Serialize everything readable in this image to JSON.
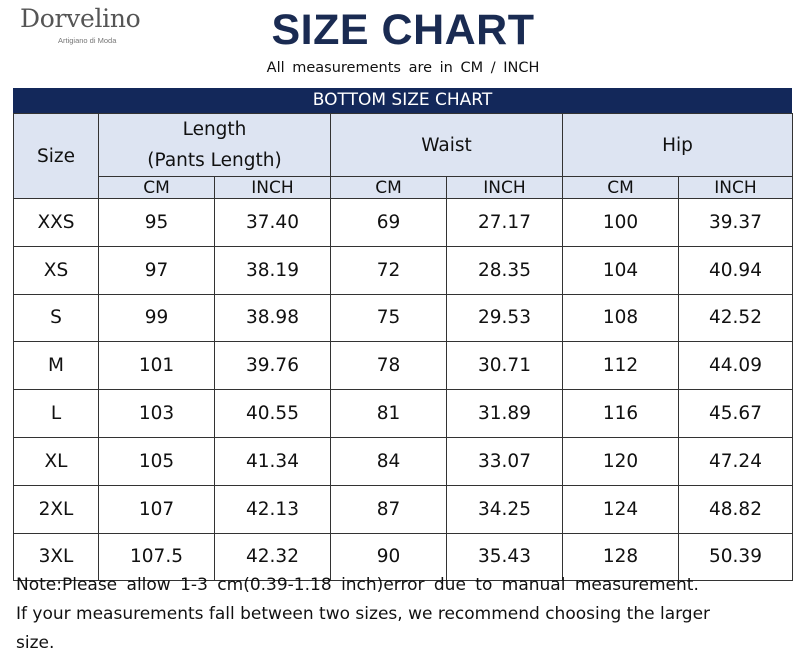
{
  "logo": {
    "wordmark": "Dorvelino",
    "tagline": "Artigiano di Moda"
  },
  "title": "SIZE CHART",
  "subtitle": "All measurements are in CM / INCH",
  "band_title": "BOTTOM SIZE CHART",
  "columns": {
    "size": "Size",
    "length_line1": "Length",
    "length_line2": "(Pants Length)",
    "waist": "Waist",
    "hip": "Hip",
    "cm": "CM",
    "inch": "INCH"
  },
  "rows": [
    {
      "size": "XXS",
      "length_cm": "95",
      "length_inch": "37.40",
      "waist_cm": "69",
      "waist_inch": "27.17",
      "hip_cm": "100",
      "hip_inch": "39.37"
    },
    {
      "size": "XS",
      "length_cm": "97",
      "length_inch": "38.19",
      "waist_cm": "72",
      "waist_inch": "28.35",
      "hip_cm": "104",
      "hip_inch": "40.94"
    },
    {
      "size": "S",
      "length_cm": "99",
      "length_inch": "38.98",
      "waist_cm": "75",
      "waist_inch": "29.53",
      "hip_cm": "108",
      "hip_inch": "42.52"
    },
    {
      "size": "M",
      "length_cm": "101",
      "length_inch": "39.76",
      "waist_cm": "78",
      "waist_inch": "30.71",
      "hip_cm": "112",
      "hip_inch": "44.09"
    },
    {
      "size": "L",
      "length_cm": "103",
      "length_inch": "40.55",
      "waist_cm": "81",
      "waist_inch": "31.89",
      "hip_cm": "116",
      "hip_inch": "45.67"
    },
    {
      "size": "XL",
      "length_cm": "105",
      "length_inch": "41.34",
      "waist_cm": "84",
      "waist_inch": "33.07",
      "hip_cm": "120",
      "hip_inch": "47.24"
    },
    {
      "size": "2XL",
      "length_cm": "107",
      "length_inch": "42.13",
      "waist_cm": "87",
      "waist_inch": "34.25",
      "hip_cm": "124",
      "hip_inch": "48.82"
    },
    {
      "size": "3XL",
      "length_cm": "107.5",
      "length_inch": "42.32",
      "waist_cm": "90",
      "waist_inch": "35.43",
      "hip_cm": "128",
      "hip_inch": "50.39"
    }
  ],
  "notes": {
    "line1": "Note:Please allow 1-3 cm(0.39-1.18 inch)error due to manual measurement.",
    "line2": "If your measurements fall between two sizes, we recommend choosing the larger",
    "line3": "size."
  },
  "colors": {
    "title": "#1a2b52",
    "band": "#13285a",
    "header_fill": "#dde4f2"
  }
}
